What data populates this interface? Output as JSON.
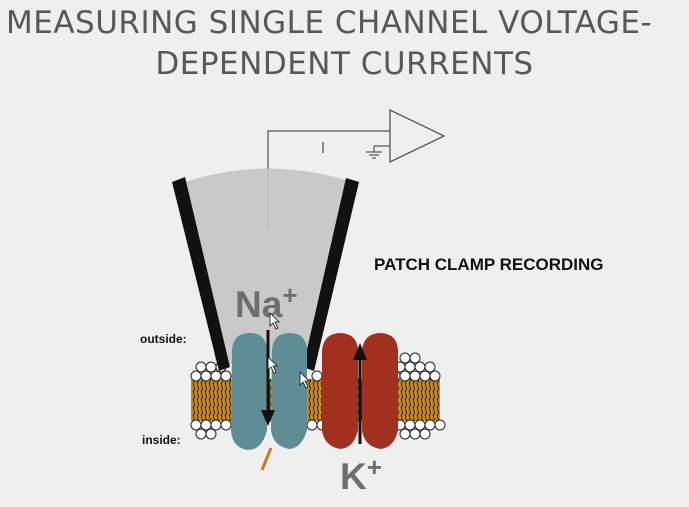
{
  "slide": {
    "title_line1": "MEASURING SINGLE CHANNEL VOLTAGE-",
    "title_line2": "DEPENDENT CURRENTS",
    "caption": "PATCH CLAMP RECORDING",
    "outside_label": "outside:",
    "inside_label": "inside:",
    "sodium": {
      "symbol": "Na",
      "charge": "+"
    },
    "potassium": {
      "symbol": "K",
      "charge": "+"
    }
  },
  "colors": {
    "background": "#efefef",
    "title": "#585858",
    "pipette_fill": "#c4c4c4",
    "pipette_wall": "#111111",
    "sodium_channel": "#5f8d95",
    "potassium_channel": "#a1301f",
    "lipid_head": "#ffffff",
    "lipid_tail": "#d9a032",
    "ion_label": "#6e6e6e"
  }
}
